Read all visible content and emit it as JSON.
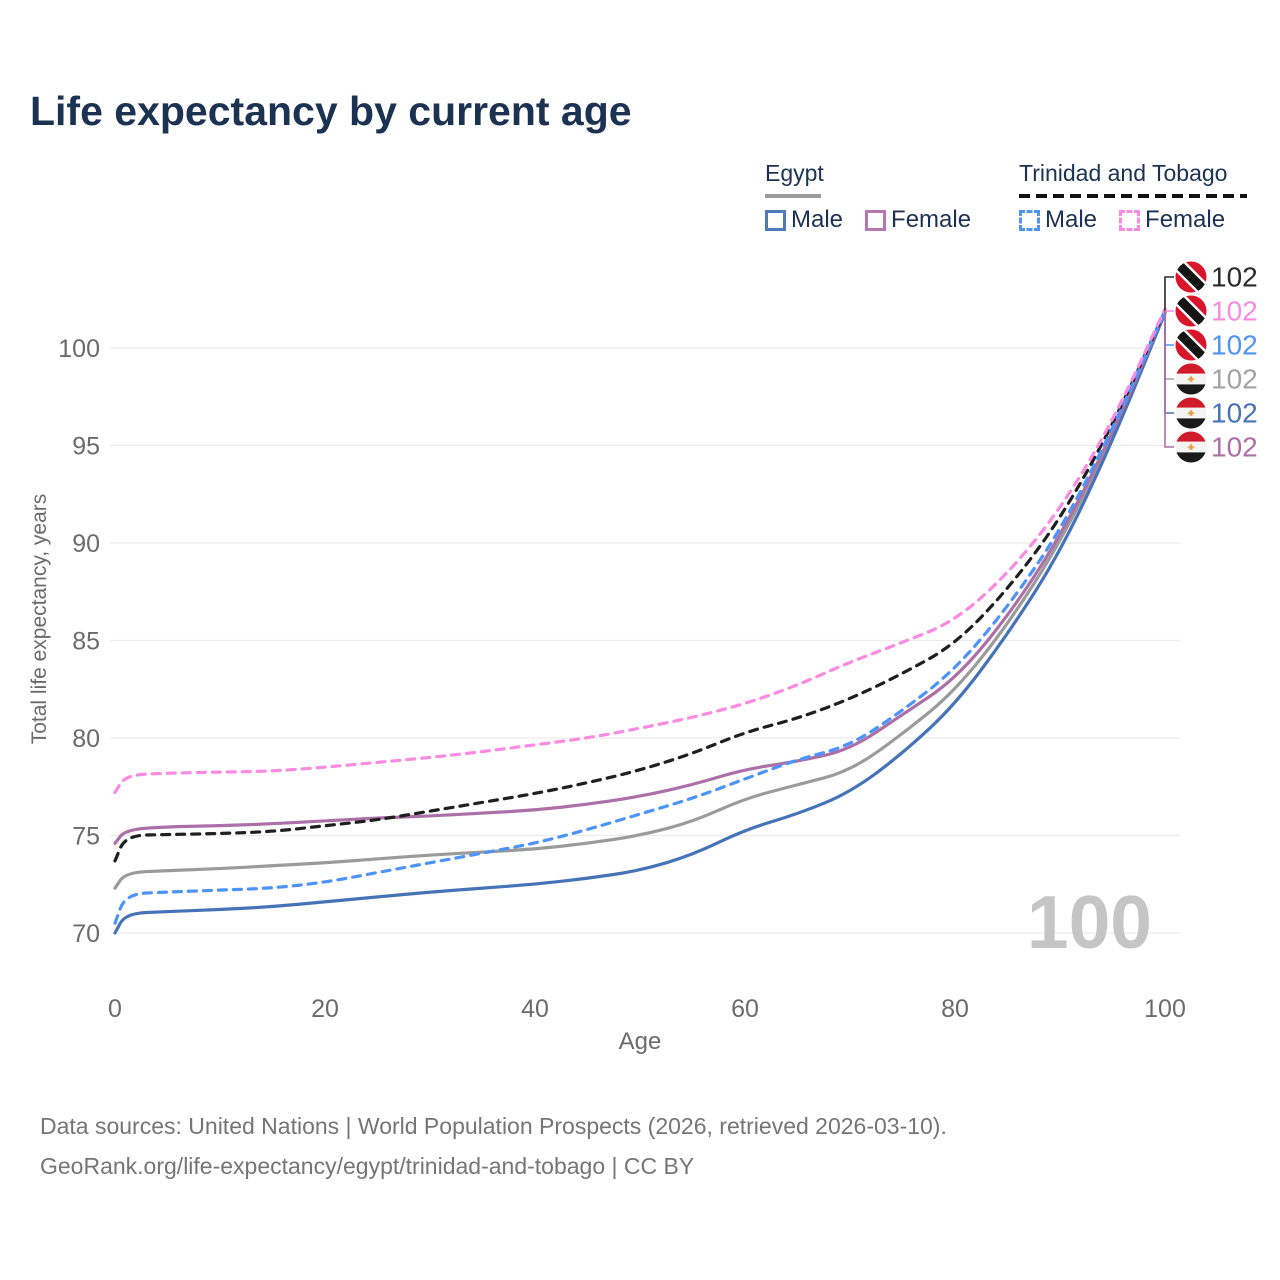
{
  "title": "Life expectancy by current age",
  "legend": {
    "groups": [
      {
        "country": "Egypt",
        "underline_style": "solid",
        "underline_color": "#9c9c9c",
        "items": [
          {
            "label": "Male",
            "color": "#4d7ab8",
            "dash": "solid"
          },
          {
            "label": "Female",
            "color": "#b678af",
            "dash": "solid"
          }
        ]
      },
      {
        "country": "Trinidad and Tobago",
        "underline_style": "dashed",
        "underline_color": "#111111",
        "items": [
          {
            "label": "Male",
            "color": "#4d94f9",
            "dash": "dashed"
          },
          {
            "label": "Female",
            "color": "#fb8ae1",
            "dash": "dashed"
          }
        ]
      }
    ]
  },
  "footer": {
    "line1": "Data sources: United Nations | World Population Prospects (2026, retrieved 2026-03-10).",
    "line2": "GeoRank.org/life-expectancy/egypt/trinidad-and-tobago | CC BY"
  },
  "chart_data": {
    "type": "line",
    "title": "Life expectancy by current age",
    "xlabel": "Age",
    "ylabel": "Total life expectancy, years",
    "x_ticks": [
      0,
      20,
      40,
      60,
      80,
      100
    ],
    "y_ticks": [
      70,
      75,
      80,
      85,
      90,
      95,
      100
    ],
    "xlim": [
      0,
      100
    ],
    "ylim": [
      70,
      102
    ],
    "grid": "horizontal-only",
    "gridline_color": "#ececec",
    "tick_label_color": "#6b6b6b",
    "current_age_watermark": "100",
    "watermark_color": "#c5c5c5",
    "x": [
      0,
      1,
      5,
      10,
      15,
      20,
      25,
      30,
      35,
      40,
      45,
      50,
      55,
      60,
      65,
      70,
      75,
      80,
      85,
      90,
      95,
      100
    ],
    "series": [
      {
        "name": "Egypt Male",
        "color": "#4673b8",
        "dash": "solid",
        "values": [
          70.0,
          71.0,
          71.1,
          71.2,
          71.35,
          71.6,
          71.85,
          72.1,
          72.3,
          72.5,
          72.8,
          73.2,
          74.0,
          75.3,
          76.1,
          77.2,
          79.2,
          81.7,
          85.3,
          89.5,
          95.2,
          101.8
        ]
      },
      {
        "name": "Egypt Female",
        "color": "#ad6fa8",
        "dash": "solid",
        "values": [
          74.6,
          75.3,
          75.45,
          75.5,
          75.6,
          75.75,
          75.9,
          76.0,
          76.15,
          76.3,
          76.6,
          77.0,
          77.6,
          78.4,
          78.8,
          79.4,
          81.2,
          83.0,
          86.2,
          90.3,
          95.6,
          101.9
        ]
      },
      {
        "name": "Egypt Both sexes",
        "color": "#9b9b9b",
        "dash": "solid",
        "values": [
          72.3,
          73.1,
          73.2,
          73.3,
          73.45,
          73.6,
          73.8,
          74.0,
          74.15,
          74.3,
          74.6,
          75.0,
          75.7,
          76.9,
          77.6,
          78.3,
          80.2,
          82.4,
          85.8,
          90.0,
          95.4,
          101.8
        ]
      },
      {
        "name": "Trinidad and Tobago Male",
        "color": "#4d94f9",
        "dash": "dashed",
        "values": [
          70.5,
          72.0,
          72.1,
          72.2,
          72.3,
          72.6,
          73.1,
          73.6,
          74.1,
          74.6,
          75.3,
          76.1,
          76.9,
          77.9,
          78.9,
          79.6,
          81.4,
          83.5,
          86.7,
          90.6,
          95.8,
          101.9
        ]
      },
      {
        "name": "Trinidad and Tobago Female",
        "color": "#fb8ae1",
        "dash": "dashed",
        "values": [
          77.2,
          78.1,
          78.2,
          78.25,
          78.3,
          78.5,
          78.75,
          79.0,
          79.3,
          79.65,
          80.0,
          80.5,
          81.05,
          81.75,
          82.7,
          83.9,
          84.9,
          86.0,
          88.4,
          91.7,
          96.2,
          102.0
        ]
      },
      {
        "name": "Trinidad and Tobago Both sexes",
        "color": "#1f1f1f",
        "dash": "dashed",
        "values": [
          73.7,
          75.0,
          75.05,
          75.1,
          75.2,
          75.5,
          75.8,
          76.25,
          76.7,
          77.15,
          77.7,
          78.35,
          79.2,
          80.3,
          81.0,
          82.0,
          83.3,
          84.8,
          87.6,
          91.2,
          96.0,
          101.9
        ]
      }
    ],
    "end_labels": [
      {
        "series": "Trinidad and Tobago Both sexes",
        "flag": "trinidad",
        "value": "102",
        "color": "#2b2b2b"
      },
      {
        "series": "Trinidad and Tobago Female",
        "flag": "trinidad",
        "value": "102",
        "color": "#fb8ae1"
      },
      {
        "series": "Trinidad and Tobago Male",
        "flag": "trinidad",
        "value": "102",
        "color": "#4d94f9"
      },
      {
        "series": "Egypt Both sexes",
        "flag": "egypt",
        "value": "102",
        "color": "#a3a3a3"
      },
      {
        "series": "Egypt Male",
        "flag": "egypt",
        "value": "102",
        "color": "#4673b8"
      },
      {
        "series": "Egypt Female",
        "flag": "egypt",
        "value": "102",
        "color": "#ad6fa8"
      }
    ]
  }
}
